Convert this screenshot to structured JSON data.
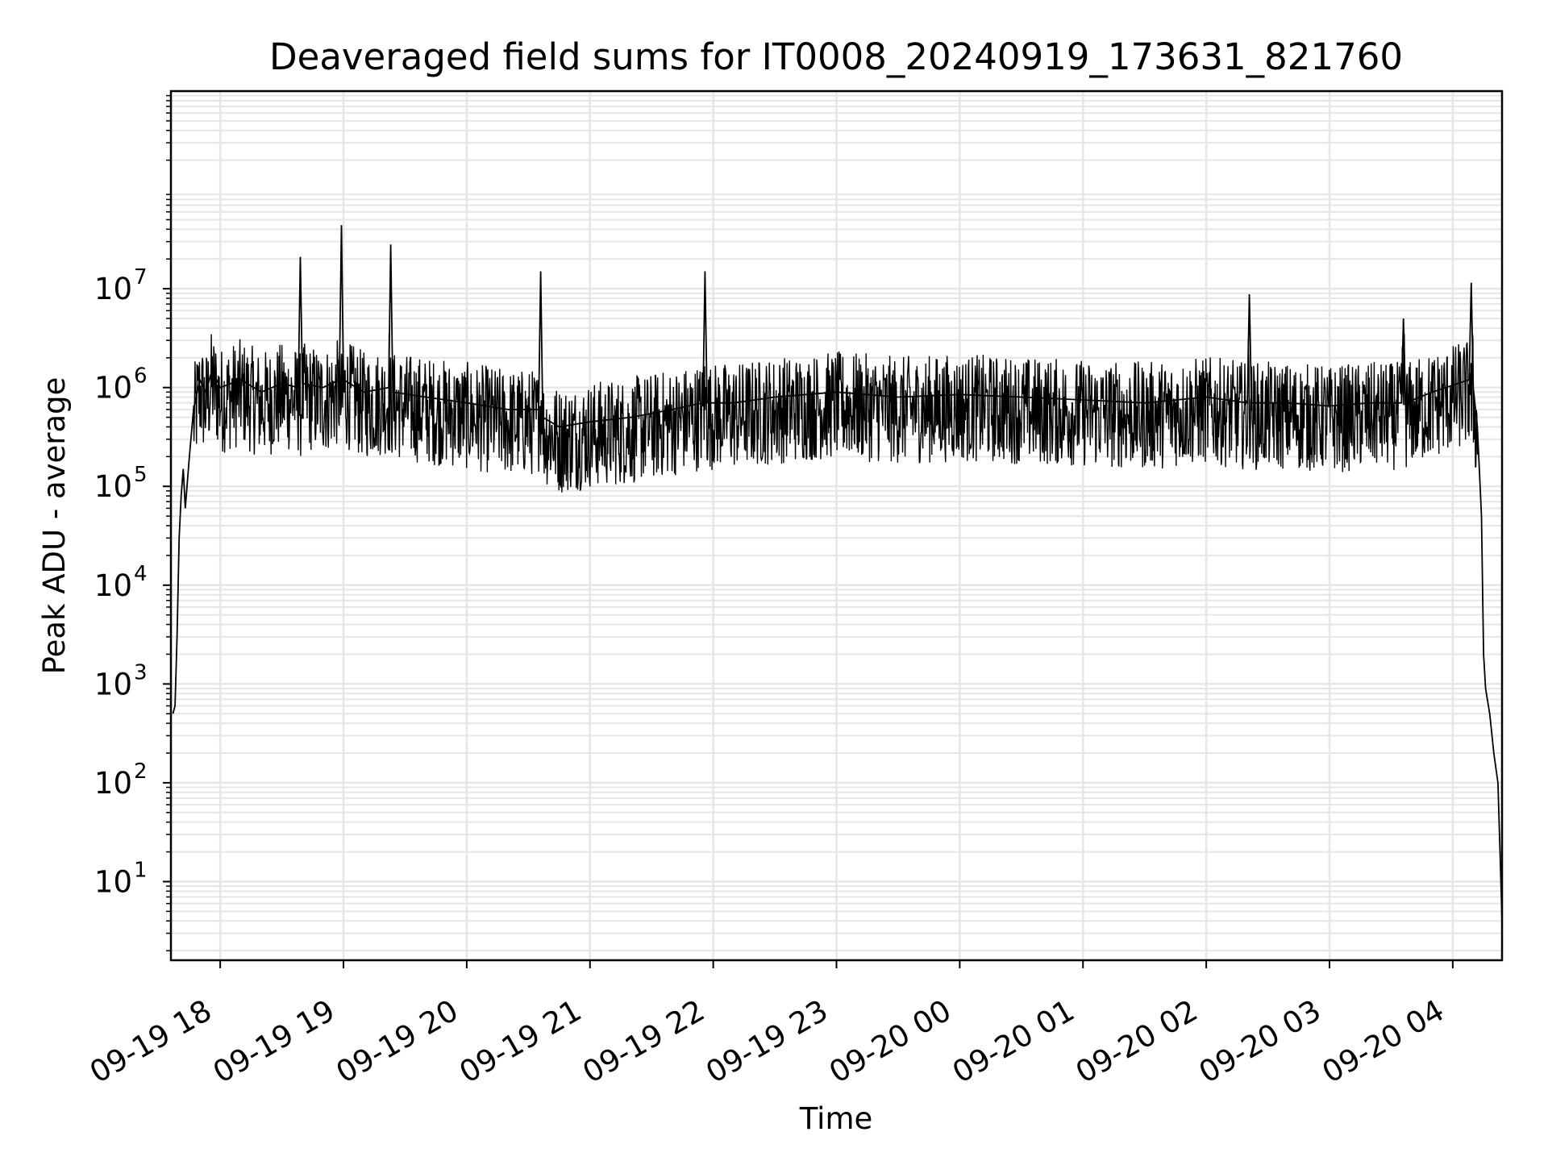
{
  "chart_data": {
    "type": "line",
    "title": "Deaveraged field sums for IT0008_20240919_173631_821760",
    "xlabel": "Time",
    "ylabel": "Peak ADU - average",
    "yscale": "log",
    "ylim": [
      1.6,
      1000000000
    ],
    "xlim": [
      "2024-09-19 17:36",
      "2024-09-20 04:24"
    ],
    "grid": true,
    "line_color": "#000000",
    "grid_color": "#e6e6e6",
    "x_ticks": [
      {
        "value": "2024-09-19 18:00",
        "label": "09-19 18"
      },
      {
        "value": "2024-09-19 19:00",
        "label": "09-19 19"
      },
      {
        "value": "2024-09-19 20:00",
        "label": "09-19 20"
      },
      {
        "value": "2024-09-19 21:00",
        "label": "09-19 21"
      },
      {
        "value": "2024-09-19 22:00",
        "label": "09-19 22"
      },
      {
        "value": "2024-09-19 23:00",
        "label": "09-19 23"
      },
      {
        "value": "2024-09-20 00:00",
        "label": "09-20 00"
      },
      {
        "value": "2024-09-20 01:00",
        "label": "09-20 01"
      },
      {
        "value": "2024-09-20 02:00",
        "label": "09-20 02"
      },
      {
        "value": "2024-09-20 03:00",
        "label": "09-20 03"
      },
      {
        "value": "2024-09-20 04:00",
        "label": "09-20 04"
      }
    ],
    "y_ticks": [
      {
        "value": 10,
        "base": "10",
        "exp": "1"
      },
      {
        "value": 100,
        "base": "10",
        "exp": "2"
      },
      {
        "value": 1000,
        "base": "10",
        "exp": "3"
      },
      {
        "value": 10000,
        "base": "10",
        "exp": "4"
      },
      {
        "value": 100000,
        "base": "10",
        "exp": "5"
      },
      {
        "value": 1000000,
        "base": "10",
        "exp": "6"
      },
      {
        "value": 10000000,
        "base": "10",
        "exp": "7"
      }
    ],
    "series": [
      {
        "x": [
          "2024-09-19 17:37",
          "2024-09-19 17:38",
          "2024-09-19 17:39",
          "2024-09-19 17:40",
          "2024-09-19 17:41",
          "2024-09-19 17:42",
          "2024-09-19 17:43",
          "2024-09-19 17:45",
          "2024-09-19 17:47",
          "2024-09-19 17:50",
          "2024-09-19 17:53",
          "2024-09-19 17:56",
          "2024-09-19 18:00",
          "2024-09-19 18:10",
          "2024-09-19 18:20",
          "2024-09-19 18:30",
          "2024-09-19 18:38",
          "2024-09-19 18:39",
          "2024-09-19 18:40",
          "2024-09-19 18:50",
          "2024-09-19 18:58",
          "2024-09-19 18:59",
          "2024-09-19 19:00",
          "2024-09-19 19:10",
          "2024-09-19 19:22",
          "2024-09-19 19:23",
          "2024-09-19 19:24",
          "2024-09-19 19:40",
          "2024-09-19 20:00",
          "2024-09-19 20:20",
          "2024-09-19 20:35",
          "2024-09-19 20:36",
          "2024-09-19 20:37",
          "2024-09-19 20:45",
          "2024-09-19 21:00",
          "2024-09-19 21:20",
          "2024-09-19 21:40",
          "2024-09-19 21:55",
          "2024-09-19 21:56",
          "2024-09-19 21:57",
          "2024-09-19 22:10",
          "2024-09-19 22:30",
          "2024-09-19 23:00",
          "2024-09-19 23:30",
          "2024-09-20 00:00",
          "2024-09-20 00:30",
          "2024-09-20 01:00",
          "2024-09-20 01:30",
          "2024-09-20 02:00",
          "2024-09-20 02:20",
          "2024-09-20 02:21",
          "2024-09-20 02:22",
          "2024-09-20 02:40",
          "2024-09-20 03:00",
          "2024-09-20 03:20",
          "2024-09-20 03:35",
          "2024-09-20 03:36",
          "2024-09-20 03:37",
          "2024-09-20 03:50",
          "2024-09-20 04:08",
          "2024-09-20 04:09",
          "2024-09-20 04:10",
          "2024-09-20 04:12",
          "2024-09-20 04:14",
          "2024-09-20 04:15",
          "2024-09-20 04:16",
          "2024-09-20 04:18",
          "2024-09-20 04:20",
          "2024-09-20 04:22",
          "2024-09-20 04:23",
          "2024-09-20 04:24"
        ],
        "y": [
          500,
          600,
          3000,
          30000,
          80000,
          150000,
          60000,
          200000,
          600000,
          1200000,
          900000,
          1500000,
          1000000,
          1200000,
          900000,
          1100000,
          1000000,
          21000000,
          1100000,
          1000000,
          1200000,
          44000000,
          1200000,
          900000,
          1000000,
          28000000,
          900000,
          800000,
          700000,
          600000,
          600000,
          15000000,
          500000,
          400000,
          450000,
          500000,
          600000,
          700000,
          15000000,
          700000,
          700000,
          800000,
          900000,
          800000,
          850000,
          800000,
          750000,
          700000,
          800000,
          700000,
          8800000,
          700000,
          700000,
          650000,
          700000,
          700000,
          5000000,
          700000,
          900000,
          1200000,
          11500000,
          1000000,
          400000,
          50000,
          2000,
          900,
          500,
          200,
          100,
          20,
          4
        ]
      }
    ]
  }
}
